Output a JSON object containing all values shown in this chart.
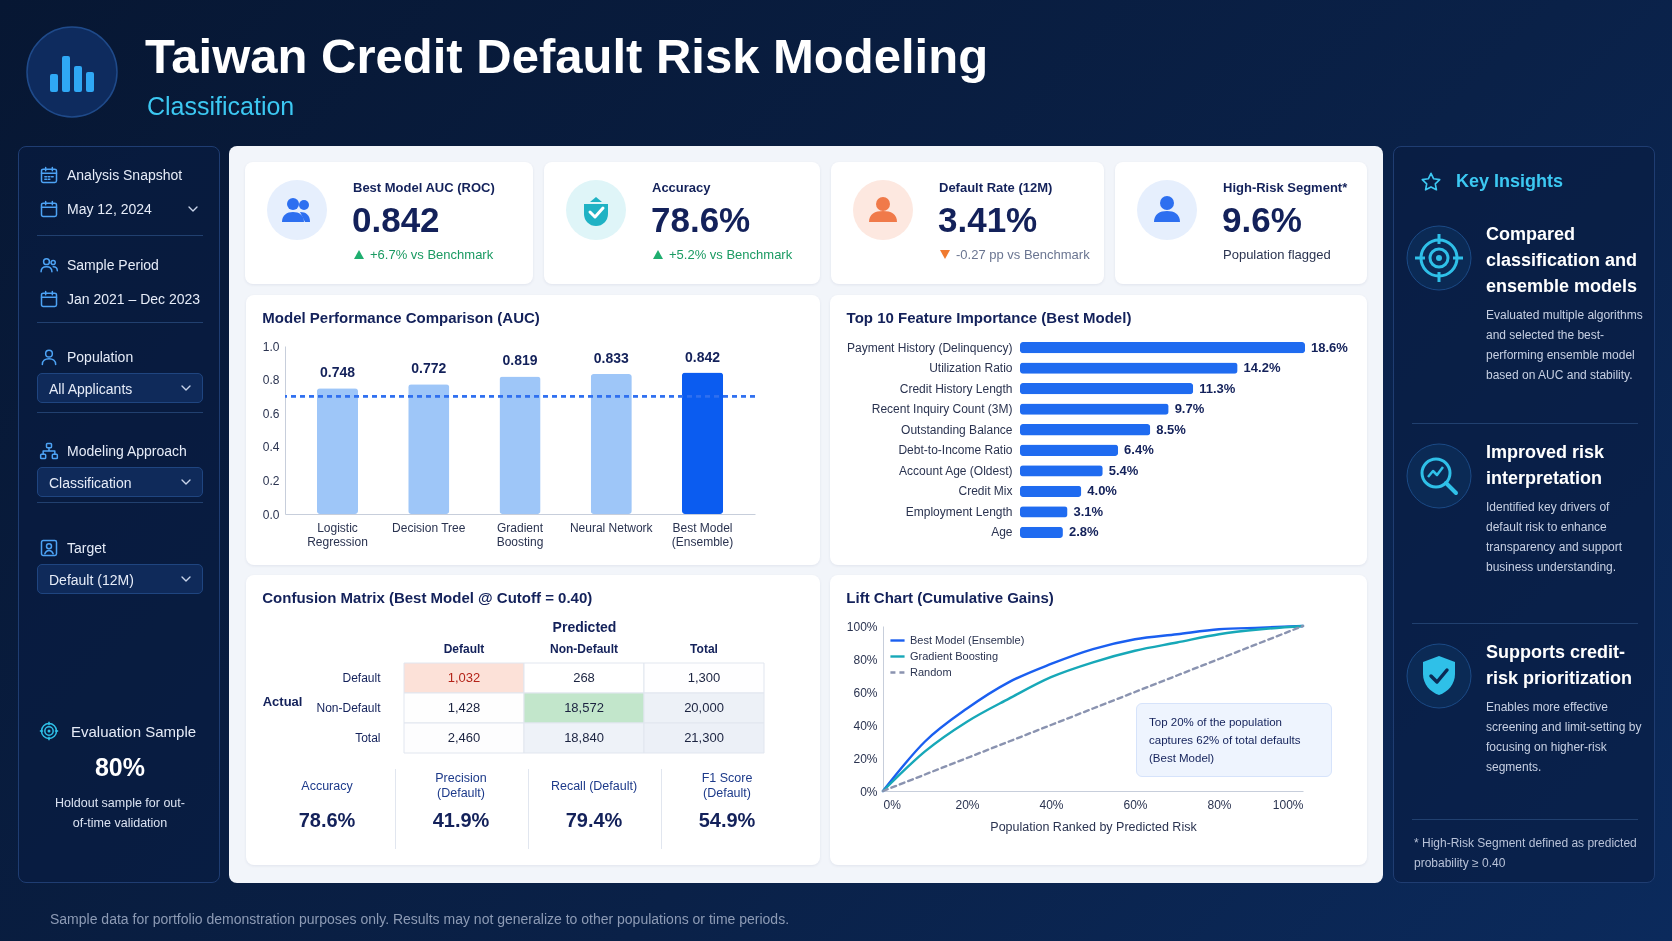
{
  "chart_data": [
    {
      "type": "other",
      "title": "Taiwan Credit Default Risk Modeling",
      "subtitle": "Classification",
      "annotations": [
        "Sample data for portfolio demonstration purposes only. Results may not generalize to other populations or time periods."
      ]
    },
    {
      "type": "other",
      "annotations": [
        "Analysis Snapshot",
        "May 12, 2024",
        "Sample Period",
        "Jan 2021 – Dec 2023",
        "Population",
        "All Applicants",
        "Modeling Approach",
        "Classification",
        "Target",
        "Default (12M)",
        "Evaluation Sample",
        "80%",
        "Holdout sample for out-of-time validation"
      ]
    },
    {
      "type": "other",
      "annotations": [
        "Best Model AUC (ROC)",
        "0.842",
        "+6.7% vs Benchmark",
        "Accuracy",
        "78.6%",
        "+5.2% vs Benchmark",
        "Default Rate (12M)",
        "3.41%",
        "-0.27 pp vs Benchmark",
        "High-Risk Segment*",
        "9.6%",
        "Population flagged"
      ]
    },
    {
      "type": "bar",
      "title": "Model Performance Comparison (AUC)",
      "categories": [
        "Logistic Regression",
        "Decision Tree",
        "Gradient Boosting",
        "Neural Network",
        "Best Model (Ensemble)"
      ],
      "values": [
        0.748,
        0.772,
        0.819,
        0.833,
        0.842
      ],
      "colors": [
        "#9ec6f8",
        "#9ec6f8",
        "#9ec6f8",
        "#9ec6f8",
        "#0b5cf0"
      ],
      "data_labels": true,
      "ylim": [
        0,
        1
      ],
      "yticks": [
        {
          "value": 0,
          "label": "0.0"
        },
        {
          "value": 0.2,
          "label": "0.2"
        },
        {
          "value": 0.4,
          "label": "0.4"
        },
        {
          "value": 0.6,
          "label": "0.6"
        },
        {
          "value": 0.8,
          "label": "0.8"
        },
        {
          "value": 1,
          "label": "1.0"
        }
      ],
      "ref_lines": [
        {
          "axis": "y",
          "value": 0.7,
          "color": "#2f6ff0",
          "line_style": "dashed"
        }
      ]
    },
    {
      "type": "bar",
      "orientation": "horizontal",
      "title": "Top 10 Feature Importance (Best Model)",
      "categories": [
        "Payment History (Delinquency)",
        "Utilization Ratio",
        "Credit History Length",
        "Recent Inquiry Count (3M)",
        "Outstanding Balance",
        "Debt-to-Income Ratio",
        "Account Age (Oldest)",
        "Credit Mix",
        "Employment Length",
        "Age"
      ],
      "values": [
        18.6,
        14.2,
        11.3,
        9.7,
        8.5,
        6.4,
        5.4,
        4.0,
        3.1,
        2.8
      ],
      "color": "#1f6bf0",
      "value_labels": [
        "18.6%",
        "14.2%",
        "11.3%",
        "9.7%",
        "8.5%",
        "6.4%",
        "5.4%",
        "4.0%",
        "3.1%",
        "2.8%"
      ]
    },
    {
      "type": "heatmap",
      "title": "Confusion Matrix (Best Model @ Cutoff = 0.40)",
      "xlabel": "Predicted",
      "ylabel": "Actual",
      "categories": [
        "Default",
        "Non-Default",
        "Total"
      ],
      "y_categories": [
        "Default",
        "Non-Default",
        "Total"
      ],
      "cells": [
        [
          1032,
          268,
          1300
        ],
        [
          1428,
          18572,
          20000
        ],
        [
          2460,
          18840,
          21300
        ]
      ],
      "cell_labels": [
        [
          "1,032",
          "268",
          "1,300"
        ],
        [
          "1,428",
          "18,572",
          "20,000"
        ],
        [
          "2,460",
          "18,840",
          "21,300"
        ]
      ],
      "data_labels": true,
      "annotations": [
        "Accuracy",
        "78.6%",
        "Precision (Default)",
        "41.9%",
        "Recall (Default)",
        "79.4%",
        "F1 Score (Default)",
        "54.9%"
      ]
    },
    {
      "type": "line",
      "title": "Lift Chart (Cumulative Gains)",
      "xlabel": "Population Ranked by Predicted Risk",
      "x": [
        0,
        10,
        20,
        30,
        40,
        50,
        60,
        70,
        80,
        90,
        100
      ],
      "xlim": [
        0,
        100
      ],
      "ylim": [
        0,
        100
      ],
      "xticks": [
        {
          "value": 0,
          "label": "0%"
        },
        {
          "value": 20,
          "label": "20%"
        },
        {
          "value": 40,
          "label": "40%"
        },
        {
          "value": 60,
          "label": "60%"
        },
        {
          "value": 80,
          "label": "80%"
        },
        {
          "value": 100,
          "label": "100%"
        }
      ],
      "yticks": [
        {
          "value": 0,
          "label": "0%"
        },
        {
          "value": 20,
          "label": "20%"
        },
        {
          "value": 40,
          "label": "40%"
        },
        {
          "value": 60,
          "label": "60%"
        },
        {
          "value": 80,
          "label": "80%"
        },
        {
          "value": 100,
          "label": "100%"
        }
      ],
      "legend": "top left",
      "annotations": [
        "Top 20% of the population captures 62% of total defaults (Best Model)"
      ],
      "series": [
        {
          "name": "Best Model (Ensemble)",
          "color": "#1a5ff0",
          "values": [
            0,
            30,
            50,
            66,
            77,
            86,
            92,
            95,
            98,
            99,
            100
          ]
        },
        {
          "name": "Gradient Boosting",
          "color": "#17a8b8",
          "values": [
            0,
            24,
            42,
            56,
            69,
            78,
            85,
            90,
            95,
            98,
            100
          ]
        },
        {
          "name": "Random",
          "color": "#8a93b0",
          "line_style": "dashed",
          "values": [
            0,
            10,
            20,
            30,
            40,
            50,
            60,
            70,
            80,
            90,
            100
          ]
        }
      ]
    },
    {
      "type": "other",
      "title": "Key Insights",
      "annotations": [
        "Compared classification and ensemble models",
        "Evaluated multiple algorithms and selected the best-performing ensemble model based on AUC and stability.",
        "Improved risk interpretation",
        "Identified key drivers of default risk to enhance transparency and support business understanding.",
        "Supports credit-risk prioritization",
        "Enables more effective screening and limit-setting by focusing on higher-risk segments.",
        "* High-Risk Segment defined as predicted probability ≥ 0.40"
      ]
    }
  ]
}
